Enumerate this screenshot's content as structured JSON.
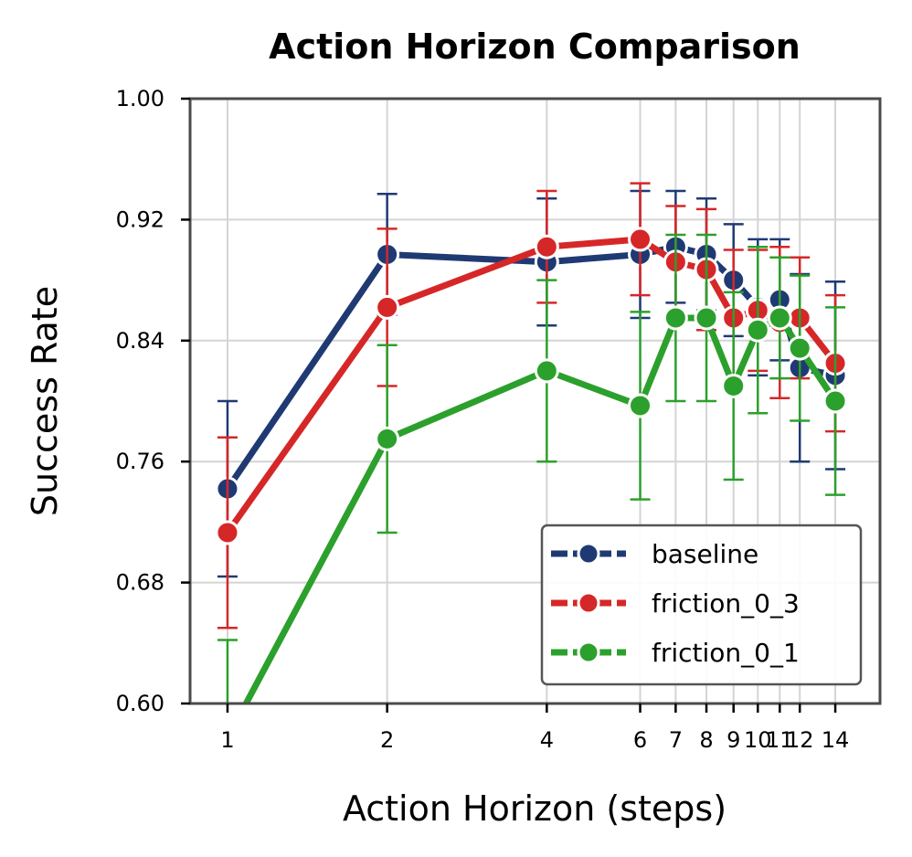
{
  "chart_data": {
    "type": "line",
    "title": "Action Horizon Comparison",
    "xlabel": "Action Horizon (steps)",
    "ylabel": "Success Rate",
    "xscale": "log",
    "xlim": [
      0.85,
      17.0
    ],
    "ylim": [
      0.6,
      1.0
    ],
    "xticks": [
      1,
      2,
      4,
      6,
      7,
      8,
      9,
      10,
      11,
      12,
      14
    ],
    "yticks": [
      0.6,
      0.68,
      0.76,
      0.84,
      0.92,
      1.0
    ],
    "ytick_labels": [
      "0.60",
      "0.68",
      "0.76",
      "0.84",
      "0.92",
      "1.00"
    ],
    "grid": true,
    "legend": "lower-right",
    "x": [
      1,
      2,
      4,
      6,
      7,
      8,
      9,
      10,
      11,
      12,
      14
    ],
    "series": [
      {
        "name": "baseline",
        "color": "#1f3a73",
        "values": [
          0.742,
          0.897,
          0.892,
          0.897,
          0.902,
          0.897,
          0.88,
          0.862,
          0.867,
          0.822,
          0.817
        ],
        "err": [
          0.058,
          0.04,
          0.042,
          0.042,
          0.037,
          0.037,
          0.037,
          0.045,
          0.04,
          0.062,
          0.062
        ]
      },
      {
        "name": "friction_0_3",
        "color": "#d62728",
        "values": [
          0.713,
          0.862,
          0.902,
          0.907,
          0.892,
          0.887,
          0.855,
          0.86,
          0.852,
          0.855,
          0.825
        ],
        "err": [
          0.063,
          0.052,
          0.037,
          0.037,
          0.037,
          0.04,
          0.045,
          0.04,
          0.05,
          0.04,
          0.045
        ]
      },
      {
        "name": "friction_0_1",
        "color": "#2ca02c",
        "values": [
          0.577,
          0.775,
          0.82,
          0.797,
          0.855,
          0.855,
          0.81,
          0.847,
          0.855,
          0.835,
          0.8
        ],
        "err": [
          0.065,
          0.062,
          0.06,
          0.062,
          0.055,
          0.055,
          0.062,
          0.055,
          0.04,
          0.048,
          0.062
        ]
      }
    ]
  }
}
